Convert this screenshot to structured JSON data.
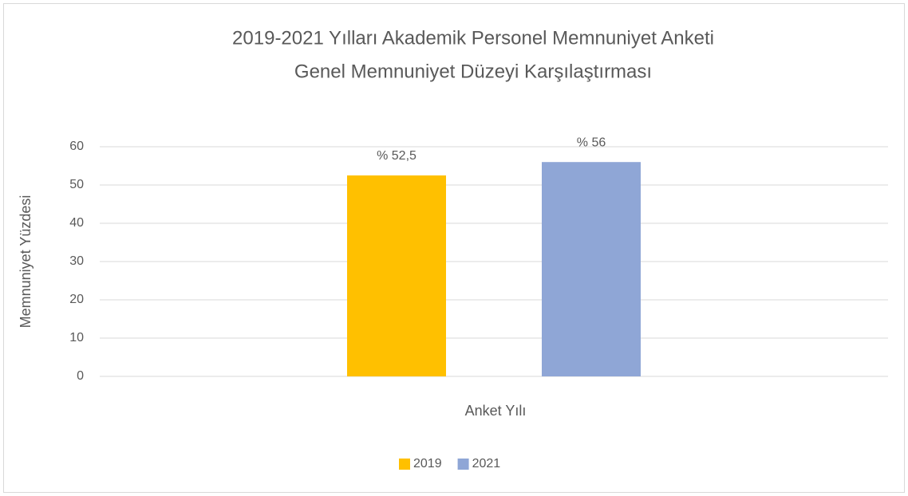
{
  "chart_data": {
    "type": "bar",
    "title": "2019-2021 Yılları Akademik Personel Memnuniyet Anketi",
    "subtitle": "Genel Memnuniyet Düzeyi Karşılaştırması",
    "x_label": "Anket Yılı",
    "y_label": "Memnuniyet Yüzdesi",
    "categories": [
      null
    ],
    "series": [
      {
        "name": "2019",
        "color": "#ffc000",
        "values": [
          52.5
        ],
        "value_labels": [
          "% 52,5"
        ]
      },
      {
        "name": "2021",
        "color": "#8fa6d6",
        "values": [
          56
        ],
        "value_labels": [
          "% 56"
        ]
      }
    ],
    "ylim": [
      0,
      60
    ],
    "yticks": [
      0,
      10,
      20,
      30,
      40,
      50,
      60
    ],
    "grid": true,
    "legend": "bottom"
  }
}
